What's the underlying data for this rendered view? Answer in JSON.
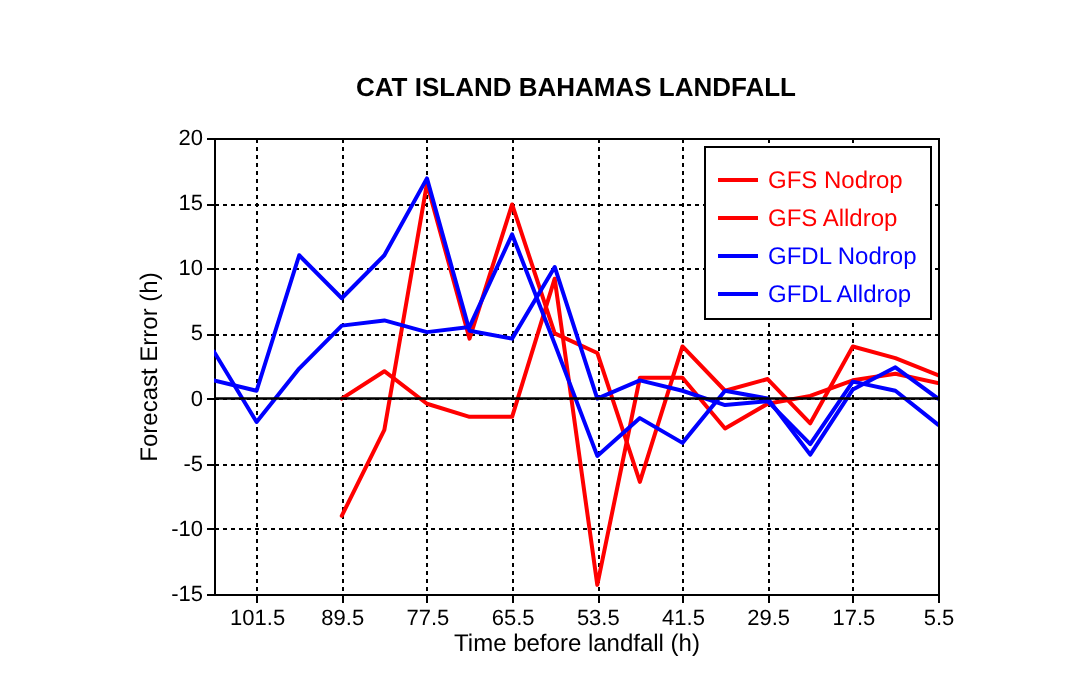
{
  "chart_data": {
    "type": "line",
    "title": "CAT ISLAND BAHAMAS LANDFALL",
    "xlabel": "Time before landfall (h)",
    "ylabel": "Forecast Error (h)",
    "x": [
      107.5,
      101.5,
      95.5,
      89.5,
      83.5,
      77.5,
      71.5,
      65.5,
      59.5,
      53.5,
      47.5,
      41.5,
      35.5,
      29.5,
      23.5,
      17.5,
      11.5,
      5.5
    ],
    "series": [
      {
        "name": "GFS Nodrop",
        "color": "#ff0000",
        "values": [
          null,
          null,
          null,
          -9.0,
          -2.4,
          16.5,
          4.6,
          14.9,
          5.0,
          3.5,
          -6.4,
          4.0,
          0.6,
          1.5,
          -1.9,
          4.0,
          3.1,
          1.8
        ]
      },
      {
        "name": "GFS Alldrop",
        "color": "#ff0000",
        "values": [
          null,
          null,
          null,
          0,
          2.1,
          -0.4,
          -1.4,
          -1.4,
          9.2,
          -14.3,
          1.6,
          1.6,
          -2.3,
          -0.4,
          0.2,
          1.4,
          1.9,
          1.2
        ]
      },
      {
        "name": "GFDL Nodrop",
        "color": "#0000ff",
        "values": [
          1.4,
          0.6,
          11.0,
          7.7,
          11.0,
          16.9,
          5.2,
          4.6,
          10.1,
          0,
          1.4,
          0.6,
          -0.5,
          -0.2,
          -3.5,
          1.3,
          0.6,
          -2.0
        ]
      },
      {
        "name": "GFDL Alldrop",
        "color": "#0000ff",
        "values": [
          3.6,
          -1.8,
          2.3,
          5.6,
          6.0,
          5.1,
          5.5,
          12.6,
          4.2,
          -4.4,
          -1.5,
          -3.4,
          0.6,
          0,
          -4.3,
          0.7,
          2.4,
          0
        ]
      }
    ],
    "xlim": [
      107.5,
      5.5
    ],
    "xticks": [
      101.5,
      89.5,
      77.5,
      65.5,
      53.5,
      41.5,
      29.5,
      17.5,
      5.5
    ],
    "ylim": [
      -15,
      20
    ],
    "yticks": [
      -15,
      -10,
      -5,
      0,
      5,
      10,
      15,
      20
    ],
    "ref_lines": [
      {
        "axis": "y",
        "value": 0,
        "color": "#000000"
      }
    ],
    "grid": true,
    "legend": "top right",
    "marker": "none",
    "line_style": "solid"
  }
}
